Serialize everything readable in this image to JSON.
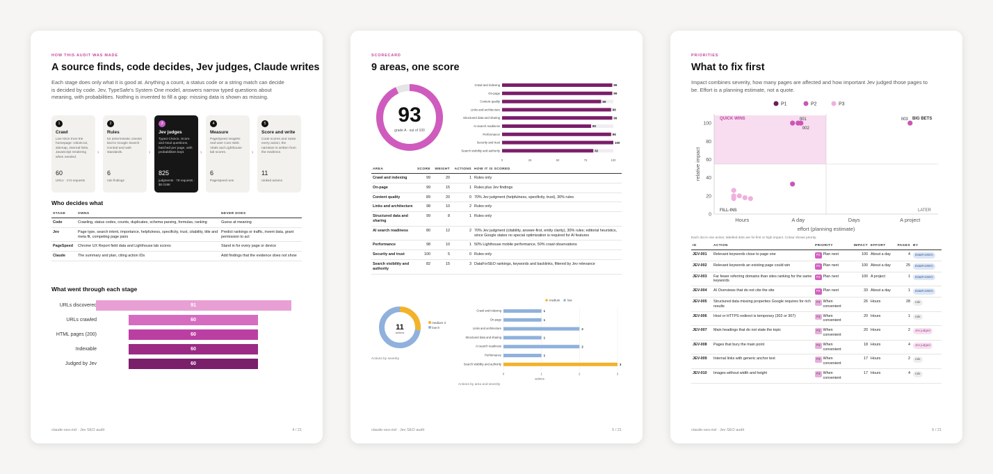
{
  "pages": [
    {
      "eyebrow": "HOW THIS AUDIT WAS MADE",
      "title": "A source finds, code decides, Jev judges, Claude writes",
      "lead": "Each stage does only what it is good at. Anything a count, a status code or a string match can decide is decided by code. Jev, TypeSafe's System One model, answers narrow typed questions about meaning, with probabilities. Nothing is invented to fill a gap: missing data is shown as missing.",
      "stages": [
        {
          "num": "1",
          "title": "Crawl",
          "desc": "Live fetch from the homepage: robots.txt, sitemap, internal links, JavaScript rendering when needed.",
          "stat": "60",
          "sub": "URLs · 174 requests"
        },
        {
          "num": "2",
          "title": "Rules",
          "desc": "52 deterministic checks tied to Google Search Central and web standards.",
          "stat": "6",
          "sub": "rule findings"
        },
        {
          "num": "3",
          "title": "Jev judges",
          "desc": "Typed Choice, Score and Noul questions, batched per page, with probabilities kept.",
          "stat": "825",
          "sub": "judgments · 78 requests · $0.0198"
        },
        {
          "num": "4",
          "title": "Measure",
          "desc": "PageSpeed Insights: real-user Core Web Vitals and Lighthouse lab scores.",
          "stat": "6",
          "sub": "PageSpeed runs"
        },
        {
          "num": "5",
          "title": "Score and write",
          "desc": "Code scores and ranks every action; the narrative is written from the evidence.",
          "stat": "11",
          "sub": "ranked actions"
        }
      ],
      "who_title": "Who decides what",
      "who_headers": [
        "STAGE",
        "OWNS",
        "NEVER DOES"
      ],
      "who_rows": [
        [
          "Code",
          "Crawling, status codes, counts, duplicates, schema parsing, formulas, ranking",
          "Guess at meaning"
        ],
        [
          "Jev",
          "Page type, search intent, importance, helpfulness, specificity, trust, citability, title and meta fit, competing page pairs",
          "Predict rankings or traffic, invent data, grant permission to act"
        ],
        [
          "PageSpeed",
          "Chrome UX Report field data and Lighthouse lab scores",
          "Stand in for every page or device"
        ],
        [
          "Claude",
          "The summary and plan, citing action IDs",
          "Add findings that the evidence does not show"
        ]
      ],
      "funnel_title": "What went through each stage",
      "funnel": [
        {
          "label": "URLs discovered",
          "value": 91,
          "color": "#e8a0d4"
        },
        {
          "label": "URLs crawled",
          "value": 60,
          "color": "#d66cc0"
        },
        {
          "label": "HTML pages (200)",
          "value": 60,
          "color": "#bb3fa2"
        },
        {
          "label": "Indexable",
          "value": 60,
          "color": "#9b2b85"
        },
        {
          "label": "Judged by Jev",
          "value": 60,
          "color": "#7a1f6a"
        }
      ],
      "footer_left": "claude-seo.md · Jev SEO audit",
      "footer_right": "4 / 21"
    },
    {
      "eyebrow": "SCORECARD",
      "title": "9 areas, one score",
      "score": "93",
      "score_sub": "grade A · out of 100",
      "area_headers": [
        "AREA",
        "SCORE",
        "WEIGHT",
        "ACTIONS",
        "HOW IT IS SCORED"
      ],
      "area_rows": [
        [
          "Crawl and indexing",
          "99",
          "20",
          "1",
          "Rules only"
        ],
        [
          "On-page",
          "99",
          "15",
          "1",
          "Rules plus Jev findings"
        ],
        [
          "Content quality",
          "89",
          "20",
          "0",
          "70% Jev judgment (helpfulness, specificity, trust), 30% rules"
        ],
        [
          "Links and architecture",
          "98",
          "10",
          "2",
          "Rules only"
        ],
        [
          "Structured data and sharing",
          "99",
          "8",
          "1",
          "Rules only"
        ],
        [
          "AI search readiness",
          "80",
          "12",
          "2",
          "70% Jev judgment (citability, answer-first, entity clarity), 30% rules; editorial heuristics, since Google states no special optimization is required for AI features"
        ],
        [
          "Performance",
          "98",
          "10",
          "1",
          "50% Lighthouse mobile performance, 50% crawl observations"
        ],
        [
          "Security and trust",
          "100",
          "5",
          "0",
          "Rules only"
        ],
        [
          "Search visibility and authority",
          "82",
          "15",
          "3",
          "DataForSEO rankings, keywords and backlinks, filtered by Jev relevance"
        ]
      ],
      "donut_total": "11",
      "donut_unit": "actions",
      "donut_legend": [
        "medium 3",
        "low 8"
      ],
      "donut_caption": "Actions by severity",
      "sev_legend": [
        "medium",
        "low"
      ],
      "sev_caption": "Actions by area and severity",
      "sev_axis": "actions",
      "footer_left": "claude-seo.md · Jev SEO audit",
      "footer_right": "5 / 21"
    },
    {
      "eyebrow": "PRIORITIES",
      "title": "What to fix first",
      "lead": "Impact combines severity, how many pages are affected and how important Jev judged those pages to be. Effort is a planning estimate, not a quote.",
      "legend": [
        "P1",
        "P2",
        "P3"
      ],
      "quadrants": {
        "qw": "QUICK WINS",
        "bb": "BIG BETS",
        "fi": "FILL-INS",
        "la": "LATER"
      },
      "point_labels": [
        "001",
        "002",
        "003"
      ],
      "note": "Each dot is one action; labelled dots are fix-first or high impact. Colour shows priority.",
      "action_headers": [
        "ID",
        "ACTION",
        "PRIORITY",
        "IMPACT",
        "EFFORT",
        "PAGES",
        "BY"
      ],
      "actions": [
        {
          "id": "JEV-001",
          "action": "Relevant keywords close to page one",
          "pri": "P2",
          "pri_label": "Plan next",
          "impact": "100",
          "effort": "About a day",
          "pages": "4",
          "by": "DataForSEO",
          "by_type": "dfs"
        },
        {
          "id": "JEV-002",
          "action": "Relevant keywords an existing page could win",
          "pri": "P2",
          "pri_label": "Plan next",
          "impact": "100",
          "effort": "About a day",
          "pages": "25",
          "by": "DataForSEO",
          "by_type": "dfs"
        },
        {
          "id": "JEV-003",
          "action": "Far fewer referring domains than sites ranking for the same keywords",
          "pri": "P2",
          "pri_label": "Plan next",
          "impact": "100",
          "effort": "A project",
          "pages": "1",
          "by": "DataForSEO",
          "by_type": "dfs"
        },
        {
          "id": "JEV-004",
          "action": "AI Overviews that do not cite the site",
          "pri": "P2",
          "pri_label": "Plan next",
          "impact": "33",
          "effort": "About a day",
          "pages": "1",
          "by": "DataForSEO",
          "by_type": "dfs"
        },
        {
          "id": "JEV-005",
          "action": "Structured data missing properties Google requires for rich results",
          "pri": "P3",
          "pri_label": "When convenient",
          "impact": "26",
          "effort": "Hours",
          "pages": "28",
          "by": "rule",
          "by_type": "rule"
        },
        {
          "id": "JEV-006",
          "action": "Host or HTTPS redirect is temporary (302 or 307)",
          "pri": "P3",
          "pri_label": "When convenient",
          "impact": "20",
          "effort": "Hours",
          "pages": "1",
          "by": "rule",
          "by_type": "rule"
        },
        {
          "id": "JEV-007",
          "action": "Main headings that do not state the topic",
          "pri": "P3",
          "pri_label": "When convenient",
          "impact": "20",
          "effort": "Hours",
          "pages": "2",
          "by": "Jev judged",
          "by_type": "jev"
        },
        {
          "id": "JEV-008",
          "action": "Pages that bury the main point",
          "pri": "P3",
          "pri_label": "When convenient",
          "impact": "18",
          "effort": "Hours",
          "pages": "4",
          "by": "Jev judged",
          "by_type": "jev"
        },
        {
          "id": "JEV-009",
          "action": "Internal links with generic anchor text",
          "pri": "P3",
          "pri_label": "When convenient",
          "impact": "17",
          "effort": "Hours",
          "pages": "2",
          "by": "rule",
          "by_type": "rule"
        },
        {
          "id": "JEV-010",
          "action": "Images without width and height",
          "pri": "P3",
          "pri_label": "When convenient",
          "impact": "17",
          "effort": "Hours",
          "pages": "4",
          "by": "rule",
          "by_type": "rule"
        }
      ],
      "footer_left": "claude-seo.md · Jev SEO audit",
      "footer_right": "6 / 21"
    }
  ],
  "chart_data": [
    {
      "type": "bar",
      "orientation": "horizontal",
      "categories": [
        "Crawl and indexing",
        "On-page",
        "Content quality",
        "Links and architecture",
        "Structured data and sharing",
        "AI search readiness",
        "Performance",
        "Security and trust",
        "Search visibility and authority"
      ],
      "values": [
        99,
        99,
        89,
        98,
        99,
        80,
        98,
        100,
        82
      ],
      "xlim": [
        0,
        100
      ],
      "xticks": [
        "0",
        "25",
        "50",
        "75",
        "100"
      ],
      "color": "#7a1f6a"
    },
    {
      "type": "pie",
      "donut": true,
      "categories": [
        "medium",
        "low"
      ],
      "values": [
        3,
        8
      ],
      "colors": [
        "#f2b22a",
        "#8fb1dc"
      ]
    },
    {
      "type": "bar",
      "orientation": "horizontal",
      "stacked": true,
      "categories": [
        "Crawl and indexing",
        "On-page",
        "Links and architecture",
        "Structured data and sharing",
        "AI search readiness",
        "Performance",
        "Search visibility and authority"
      ],
      "series": [
        {
          "name": "medium",
          "values": [
            0,
            0,
            0,
            0,
            0,
            0,
            3
          ],
          "color": "#f2b22a"
        },
        {
          "name": "low",
          "values": [
            1,
            1,
            2,
            1,
            2,
            1,
            0
          ],
          "color": "#8fb1dc"
        }
      ],
      "totals": [
        1,
        1,
        2,
        1,
        2,
        1,
        3
      ],
      "xlim": [
        0,
        3
      ],
      "xticks": [
        "0",
        "1",
        "2",
        "3"
      ],
      "xlabel": "actions"
    },
    {
      "type": "scatter",
      "xlabel": "effort (planning estimate)",
      "ylabel": "relative impact",
      "xcategories": [
        "Hours",
        "A day",
        "Days",
        "A project"
      ],
      "ylim": [
        0,
        110
      ],
      "yticks": [
        "0",
        "20",
        "40",
        "60",
        "80",
        "100"
      ],
      "points": [
        {
          "label": "001",
          "effort": 1.0,
          "impact": 100,
          "priority": "P2"
        },
        {
          "label": "",
          "effort": 0.9,
          "impact": 100,
          "priority": "P2"
        },
        {
          "label": "002",
          "effort": 1.05,
          "impact": 100,
          "priority": "P2"
        },
        {
          "label": "003",
          "effort": 3.0,
          "impact": 100,
          "priority": "P2"
        },
        {
          "label": "",
          "effort": 0.9,
          "impact": 33,
          "priority": "P2"
        },
        {
          "label": "",
          "effort": -0.15,
          "impact": 26,
          "priority": "P3"
        },
        {
          "label": "",
          "effort": -0.15,
          "impact": 20,
          "priority": "P3"
        },
        {
          "label": "",
          "effort": -0.05,
          "impact": 20,
          "priority": "P3"
        },
        {
          "label": "",
          "effort": 0.05,
          "impact": 18,
          "priority": "P3"
        },
        {
          "label": "",
          "effort": 0.15,
          "impact": 17,
          "priority": "P3"
        },
        {
          "label": "",
          "effort": -0.15,
          "impact": 17,
          "priority": "P3"
        }
      ],
      "colors": {
        "P1": "#6d1a5f",
        "P2": "#cc55b8",
        "P3": "#eeb1dd"
      }
    }
  ]
}
